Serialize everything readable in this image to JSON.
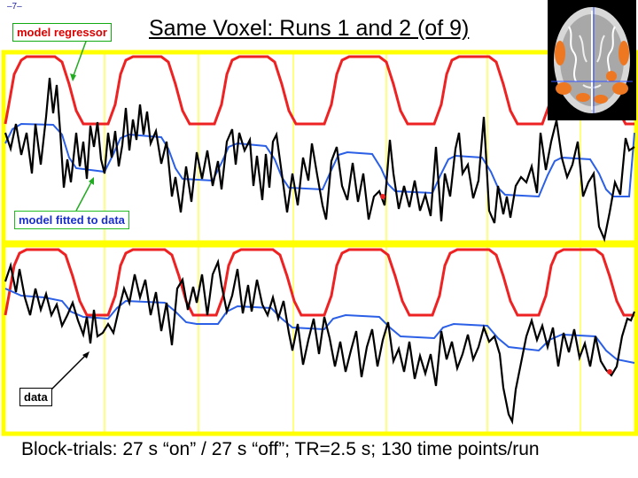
{
  "page_number": "–7–",
  "title": "Same Voxel: Runs 1 and 2 (of 9)",
  "labels": {
    "model_regressor": "model regressor",
    "model_fitted": "model fitted to data",
    "data": "data"
  },
  "caption": "Block-trials: 27 s “on” / 27 s “off”; TR=2.5 s; 130 time points/run",
  "colors": {
    "panel_background": "#ffffff",
    "panel_border": "#ffff00",
    "gridline": "#ffff00",
    "regressor": "#ee2222",
    "fitted": "#2a5fe6",
    "data": "#000000"
  },
  "brain_thumbnail": {
    "icon": "axial-brain-slice-activation-map",
    "activation_color": "#ee7722",
    "crosshair_color": "#3355ff"
  }
}
